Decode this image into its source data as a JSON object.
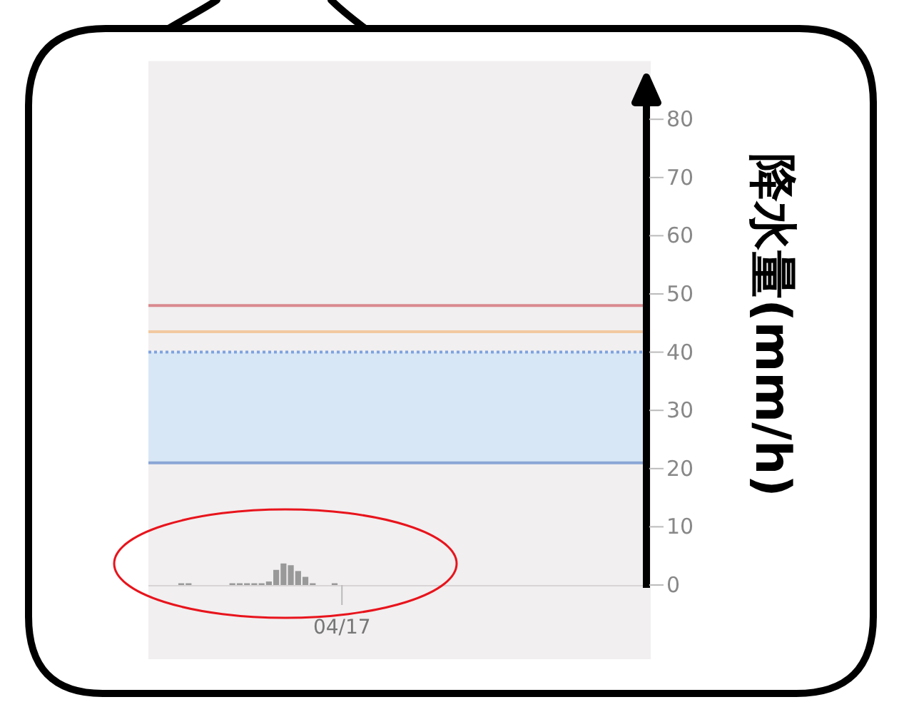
{
  "chart_data": {
    "type": "bar",
    "ylabel": "降水量(mm/h)",
    "categories": [
      null,
      null,
      null,
      null,
      null,
      null,
      null,
      null,
      null,
      null,
      null,
      null,
      null,
      null,
      null,
      null,
      null,
      null,
      null,
      null,
      null,
      null,
      null,
      null,
      null,
      null,
      "04/17",
      null,
      null,
      null,
      null,
      null,
      null,
      null,
      null,
      null,
      null,
      null,
      null,
      null,
      null,
      null,
      null,
      null,
      null,
      null,
      null,
      null,
      null,
      null,
      null,
      null,
      null,
      null,
      null,
      null,
      null,
      null,
      null,
      null,
      null,
      null,
      null,
      null,
      null,
      null,
      null,
      null
    ],
    "values": [
      0,
      0,
      0,
      0,
      0.3,
      0.3,
      0,
      0,
      0,
      0,
      0,
      0.3,
      0.3,
      0.3,
      0.3,
      0.3,
      0.6,
      2.6,
      3.7,
      3.4,
      2.4,
      1.4,
      0.3,
      0,
      0,
      0.3,
      0,
      0,
      0,
      0,
      0,
      0,
      0,
      0,
      0,
      0,
      0,
      0,
      0,
      0,
      0,
      0,
      0,
      0,
      0,
      0,
      0,
      0,
      0,
      0,
      0,
      0,
      0,
      0,
      0,
      0,
      0,
      0,
      0,
      0,
      0,
      0,
      0,
      0,
      0,
      0,
      0,
      0
    ],
    "color": "#999999",
    "ylim": [
      0,
      90
    ],
    "yticks": [
      0,
      10,
      20,
      30,
      40,
      50,
      60,
      70,
      80
    ],
    "bands": [
      {
        "axis": "y",
        "from": 21,
        "to": 40,
        "color": "#d8e7f5"
      }
    ],
    "ref_lines": [
      {
        "axis": "y",
        "value": 48,
        "color": "#d98a8f",
        "line_style": "solid"
      },
      {
        "axis": "y",
        "value": 43.5,
        "color": "#f2c9a0",
        "line_style": "solid"
      },
      {
        "axis": "y",
        "value": 40,
        "color": "#7fa3e0",
        "line_style": "dotted"
      },
      {
        "axis": "y",
        "value": 21,
        "color": "#8aa5d6",
        "line_style": "solid"
      }
    ]
  }
}
